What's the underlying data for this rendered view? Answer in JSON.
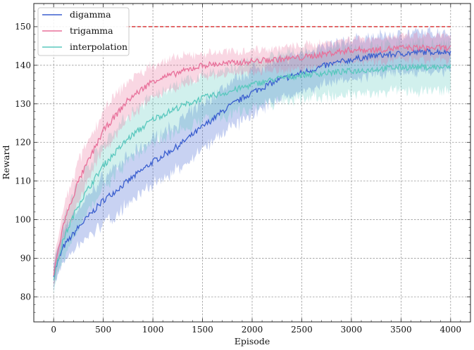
{
  "chart_data": {
    "type": "line",
    "title": "",
    "xlabel": "Episode",
    "ylabel": "Reward",
    "xlim": [
      -200,
      4200
    ],
    "ylim": [
      73.5,
      156
    ],
    "xticks": [
      0,
      500,
      1000,
      1500,
      2000,
      2500,
      3000,
      3500,
      4000
    ],
    "yticks": [
      80,
      90,
      100,
      110,
      120,
      130,
      140,
      150
    ],
    "grid": true,
    "legend_position": "top-left",
    "reference_line": {
      "y": 150,
      "x_range": [
        730,
        4000
      ],
      "color": "#d62728",
      "style": "dashed"
    },
    "series": [
      {
        "name": "digamma",
        "color": "#3b5fcf",
        "x": [
          0,
          100,
          250,
          500,
          750,
          1000,
          1250,
          1500,
          1750,
          2000,
          2250,
          2500,
          2750,
          3000,
          3250,
          3500,
          3750,
          4000
        ],
        "mean": [
          86,
          93,
          98,
          105,
          110,
          115,
          119,
          124,
          129,
          133,
          136,
          138,
          140,
          141.5,
          142.5,
          143,
          143.5,
          143.5
        ],
        "band": [
          3,
          4,
          5,
          6,
          6,
          6,
          6,
          6,
          6,
          6,
          5,
          5,
          5,
          5,
          5,
          5,
          5,
          5
        ]
      },
      {
        "name": "trigamma",
        "color": "#e8709a",
        "x": [
          0,
          100,
          250,
          500,
          750,
          1000,
          1250,
          1500,
          1750,
          2000,
          2250,
          2500,
          2750,
          3000,
          3250,
          3500,
          3750,
          4000
        ],
        "mean": [
          86,
          99,
          110,
          123,
          131,
          136,
          138,
          140,
          140.5,
          141,
          141.5,
          142,
          143,
          144,
          144,
          144.5,
          144.5,
          144.5
        ],
        "band": [
          3,
          4,
          5,
          5,
          5,
          4,
          4,
          3,
          3,
          3,
          3,
          3,
          3,
          3,
          3,
          3,
          3,
          3
        ]
      },
      {
        "name": "interpolation",
        "color": "#5ac8be",
        "x": [
          0,
          100,
          250,
          500,
          750,
          1000,
          1250,
          1500,
          1750,
          2000,
          2250,
          2500,
          2750,
          3000,
          3250,
          3500,
          3750,
          4000
        ],
        "mean": [
          85,
          95,
          104,
          114,
          121,
          126,
          129,
          131.5,
          133,
          135,
          136.5,
          137.5,
          138,
          138.5,
          139,
          139.5,
          139.5,
          139.5
        ],
        "band": [
          3,
          5,
          6,
          6,
          6,
          6,
          6,
          6,
          6,
          6,
          6,
          6,
          6,
          6,
          6,
          6,
          6,
          6
        ]
      }
    ]
  }
}
